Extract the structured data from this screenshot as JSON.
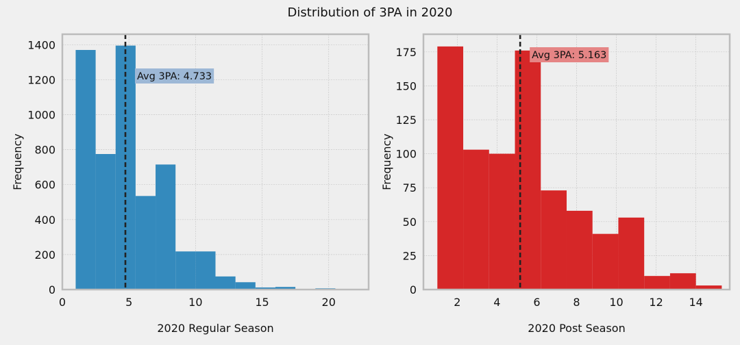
{
  "figure": {
    "title": "Distribution of 3PA in 2020"
  },
  "chart_data": [
    {
      "type": "bar",
      "subtype": "histogram",
      "series_name": "2020 Regular Season",
      "bins": [
        {
          "x0": 1.0,
          "x1": 2.5,
          "count": 1370
        },
        {
          "x0": 2.5,
          "x1": 4.0,
          "count": 775
        },
        {
          "x0": 4.0,
          "x1": 5.5,
          "count": 1395
        },
        {
          "x0": 5.5,
          "x1": 7.0,
          "count": 535
        },
        {
          "x0": 7.0,
          "x1": 8.5,
          "count": 715
        },
        {
          "x0": 8.5,
          "x1": 10.0,
          "count": 218
        },
        {
          "x0": 10.0,
          "x1": 11.5,
          "count": 218
        },
        {
          "x0": 11.5,
          "x1": 13.0,
          "count": 75
        },
        {
          "x0": 13.0,
          "x1": 14.5,
          "count": 42
        },
        {
          "x0": 14.5,
          "x1": 16.0,
          "count": 12
        },
        {
          "x0": 16.0,
          "x1": 17.5,
          "count": 15
        },
        {
          "x0": 17.5,
          "x1": 19.0,
          "count": 2
        },
        {
          "x0": 19.0,
          "x1": 20.5,
          "count": 7
        },
        {
          "x0": 20.5,
          "x1": 22.0,
          "count": 1
        }
      ],
      "mean": 4.733,
      "annotation": "Avg 3PA: 4.733",
      "xlabel": "2020 Regular Season",
      "ylabel": "Frequency",
      "xlim": [
        0,
        23
      ],
      "ylim": [
        0,
        1460
      ],
      "xticks": [
        0,
        5,
        10,
        15,
        20
      ],
      "yticks": [
        0,
        200,
        400,
        600,
        800,
        1000,
        1200,
        1400
      ],
      "color": "#348abd",
      "annotation_color": "#9db8d6",
      "grid": true
    },
    {
      "type": "bar",
      "subtype": "histogram",
      "series_name": "2020 Post Season",
      "bins": [
        {
          "x0": 1.0,
          "x1": 2.3,
          "count": 179
        },
        {
          "x0": 2.3,
          "x1": 3.6,
          "count": 103
        },
        {
          "x0": 3.6,
          "x1": 4.9,
          "count": 100
        },
        {
          "x0": 4.9,
          "x1": 6.2,
          "count": 176
        },
        {
          "x0": 6.2,
          "x1": 7.5,
          "count": 73
        },
        {
          "x0": 7.5,
          "x1": 8.8,
          "count": 58
        },
        {
          "x0": 8.8,
          "x1": 10.1,
          "count": 41
        },
        {
          "x0": 10.1,
          "x1": 11.4,
          "count": 53
        },
        {
          "x0": 11.4,
          "x1": 12.7,
          "count": 10
        },
        {
          "x0": 12.7,
          "x1": 14.0,
          "count": 12
        },
        {
          "x0": 14.0,
          "x1": 15.3,
          "count": 3
        }
      ],
      "mean": 5.163,
      "annotation": "Avg 3PA: 5.163",
      "xlabel": "2020 Post Season",
      "ylabel": "Frequency",
      "xlim": [
        0.3,
        15.7
      ],
      "ylim": [
        0,
        188
      ],
      "xticks": [
        2,
        4,
        6,
        8,
        10,
        12,
        14
      ],
      "yticks": [
        0,
        25,
        50,
        75,
        100,
        125,
        150,
        175
      ],
      "color": "#d62728",
      "annotation_color": "#e58585",
      "grid": true
    }
  ]
}
